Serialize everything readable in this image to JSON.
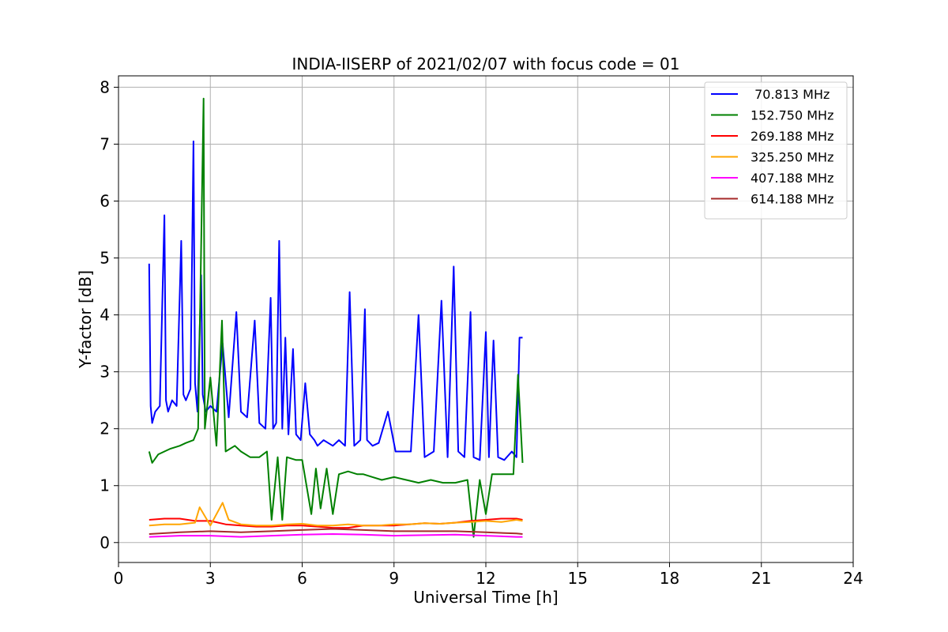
{
  "chart_data": {
    "type": "line",
    "title": "INDIA-IISERP of 2021/02/07 with focus code = 01",
    "xlabel": "Universal Time [h]",
    "ylabel": "Y-factor [dB]",
    "xlim": [
      0,
      24
    ],
    "ylim": [
      -0.35,
      8.2
    ],
    "xticks": [
      0,
      3,
      6,
      9,
      12,
      15,
      18,
      21,
      24
    ],
    "yticks": [
      0,
      1,
      2,
      3,
      4,
      5,
      6,
      7,
      8
    ],
    "grid": true,
    "legend_position": "top-right",
    "series": [
      {
        "name": " 70.813 MHz",
        "color": "#0000ff",
        "x": [
          1.0,
          1.05,
          1.1,
          1.2,
          1.35,
          1.5,
          1.55,
          1.62,
          1.75,
          1.9,
          2.05,
          2.12,
          2.2,
          2.35,
          2.45,
          2.5,
          2.58,
          2.7,
          2.75,
          2.85,
          3.0,
          3.2,
          3.4,
          3.6,
          3.85,
          4.0,
          4.2,
          4.45,
          4.6,
          4.8,
          4.97,
          5.05,
          5.15,
          5.25,
          5.35,
          5.45,
          5.55,
          5.7,
          5.8,
          5.95,
          6.1,
          6.25,
          6.4,
          6.5,
          6.7,
          6.85,
          7.0,
          7.2,
          7.4,
          7.55,
          7.7,
          7.9,
          8.05,
          8.12,
          8.3,
          8.5,
          8.8,
          9.05,
          9.3,
          9.55,
          9.8,
          10.0,
          10.3,
          10.55,
          10.75,
          10.95,
          11.1,
          11.3,
          11.5,
          11.6,
          11.8,
          12.0,
          12.1,
          12.25,
          12.4,
          12.6,
          12.85,
          13.0,
          13.1,
          13.2
        ],
        "y": [
          4.9,
          2.4,
          2.1,
          2.3,
          2.4,
          5.75,
          2.5,
          2.3,
          2.5,
          2.4,
          5.3,
          2.6,
          2.5,
          2.7,
          7.05,
          2.8,
          2.3,
          4.7,
          2.6,
          2.3,
          2.4,
          2.3,
          3.5,
          2.2,
          4.05,
          2.3,
          2.2,
          3.9,
          2.1,
          2.0,
          4.3,
          2.0,
          2.1,
          5.3,
          2.0,
          3.6,
          1.9,
          3.4,
          1.9,
          1.8,
          2.8,
          1.9,
          1.8,
          1.7,
          1.8,
          1.75,
          1.7,
          1.8,
          1.7,
          4.4,
          1.7,
          1.8,
          4.1,
          1.8,
          1.7,
          1.75,
          2.3,
          1.6,
          1.6,
          1.6,
          4.0,
          1.5,
          1.6,
          4.25,
          1.5,
          4.85,
          1.6,
          1.5,
          4.05,
          1.5,
          1.45,
          3.7,
          1.5,
          3.55,
          1.5,
          1.45,
          1.6,
          1.5,
          3.6,
          3.6
        ]
      },
      {
        "name": "152.750 MHz",
        "color": "#008000",
        "x": [
          1.0,
          1.1,
          1.3,
          1.5,
          1.7,
          2.0,
          2.2,
          2.45,
          2.6,
          2.78,
          2.82,
          3.0,
          3.2,
          3.38,
          3.5,
          3.8,
          4.0,
          4.3,
          4.6,
          4.85,
          5.0,
          5.2,
          5.35,
          5.5,
          5.8,
          6.0,
          6.3,
          6.45,
          6.6,
          6.8,
          7.0,
          7.2,
          7.5,
          7.8,
          8.0,
          8.3,
          8.6,
          9.0,
          9.4,
          9.8,
          10.2,
          10.6,
          11.0,
          11.4,
          11.6,
          11.8,
          12.0,
          12.2,
          12.6,
          12.9,
          13.05,
          13.2
        ],
        "y": [
          1.6,
          1.4,
          1.55,
          1.6,
          1.65,
          1.7,
          1.75,
          1.8,
          2.0,
          7.8,
          2.0,
          2.9,
          1.7,
          3.9,
          1.6,
          1.7,
          1.6,
          1.5,
          1.5,
          1.6,
          0.4,
          1.5,
          0.4,
          1.5,
          1.45,
          1.45,
          0.5,
          1.3,
          0.6,
          1.3,
          0.5,
          1.2,
          1.25,
          1.2,
          1.2,
          1.15,
          1.1,
          1.15,
          1.1,
          1.05,
          1.1,
          1.05,
          1.05,
          1.1,
          0.1,
          1.1,
          0.5,
          1.2,
          1.2,
          1.2,
          2.95,
          1.4
        ]
      },
      {
        "name": "269.188 MHz",
        "color": "#ff0000",
        "x": [
          1.0,
          1.5,
          2.0,
          2.5,
          3.0,
          3.5,
          4.0,
          4.5,
          5.0,
          5.5,
          6.0,
          6.5,
          7.0,
          7.5,
          8.0,
          8.5,
          9.0,
          9.5,
          10.0,
          10.5,
          11.0,
          11.5,
          12.0,
          12.5,
          13.0,
          13.2
        ],
        "y": [
          0.4,
          0.42,
          0.42,
          0.38,
          0.38,
          0.32,
          0.3,
          0.28,
          0.28,
          0.3,
          0.3,
          0.28,
          0.26,
          0.26,
          0.3,
          0.3,
          0.3,
          0.32,
          0.34,
          0.33,
          0.35,
          0.38,
          0.4,
          0.42,
          0.42,
          0.4
        ]
      },
      {
        "name": "325.250 MHz",
        "color": "#ffa500",
        "x": [
          1.0,
          1.5,
          2.0,
          2.5,
          2.65,
          3.0,
          3.4,
          3.6,
          4.0,
          4.5,
          5.0,
          5.5,
          6.0,
          6.5,
          7.0,
          7.5,
          8.0,
          8.5,
          9.0,
          9.5,
          10.0,
          10.5,
          11.0,
          11.5,
          12.0,
          12.5,
          13.0,
          13.2
        ],
        "y": [
          0.3,
          0.32,
          0.32,
          0.35,
          0.62,
          0.3,
          0.7,
          0.4,
          0.32,
          0.3,
          0.3,
          0.32,
          0.33,
          0.3,
          0.3,
          0.32,
          0.3,
          0.3,
          0.32,
          0.32,
          0.34,
          0.33,
          0.35,
          0.36,
          0.38,
          0.36,
          0.4,
          0.38
        ]
      },
      {
        "name": "407.188 MHz",
        "color": "#ff00ff",
        "x": [
          1.0,
          2.0,
          3.0,
          4.0,
          5.0,
          6.0,
          7.0,
          8.0,
          9.0,
          10.0,
          11.0,
          12.0,
          13.0,
          13.2
        ],
        "y": [
          0.1,
          0.12,
          0.12,
          0.1,
          0.12,
          0.14,
          0.15,
          0.14,
          0.12,
          0.13,
          0.14,
          0.12,
          0.1,
          0.1
        ]
      },
      {
        "name": "614.188 MHz",
        "color": "#a52a2a",
        "x": [
          1.0,
          2.0,
          3.0,
          4.0,
          5.0,
          6.0,
          7.0,
          8.0,
          9.0,
          10.0,
          11.0,
          12.0,
          13.0,
          13.2
        ],
        "y": [
          0.15,
          0.18,
          0.2,
          0.18,
          0.2,
          0.22,
          0.24,
          0.22,
          0.2,
          0.2,
          0.2,
          0.18,
          0.16,
          0.15
        ]
      }
    ]
  }
}
